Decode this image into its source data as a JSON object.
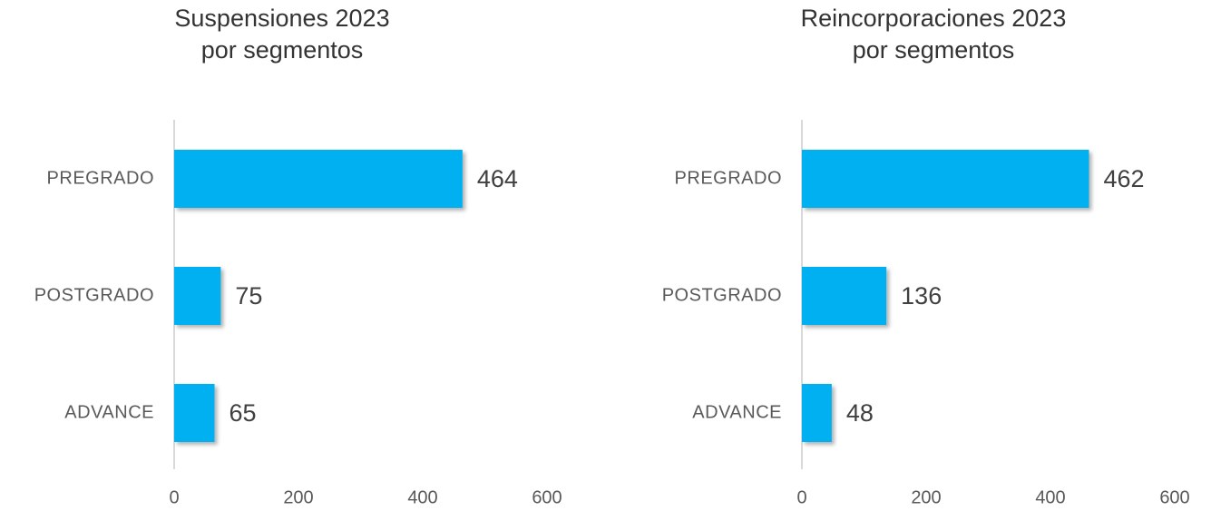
{
  "chart_data": [
    {
      "type": "bar",
      "orientation": "horizontal",
      "title": [
        "Suspensiones 2023",
        "por segmentos"
      ],
      "categories": [
        "PREGRADO",
        "POSTGRADO",
        "ADVANCE"
      ],
      "values": [
        464,
        75,
        65
      ],
      "color": "#00b0f0",
      "xlim": [
        0,
        600
      ],
      "xticks": [
        0,
        200,
        400,
        600
      ]
    },
    {
      "type": "bar",
      "orientation": "horizontal",
      "title": [
        "Reincorporaciones 2023",
        "por segmentos"
      ],
      "categories": [
        "PREGRADO",
        "POSTGRADO",
        "ADVANCE"
      ],
      "values": [
        462,
        136,
        48
      ],
      "color": "#00b0f0",
      "xlim": [
        0,
        600
      ],
      "xticks": [
        0,
        200,
        400,
        600
      ]
    }
  ]
}
